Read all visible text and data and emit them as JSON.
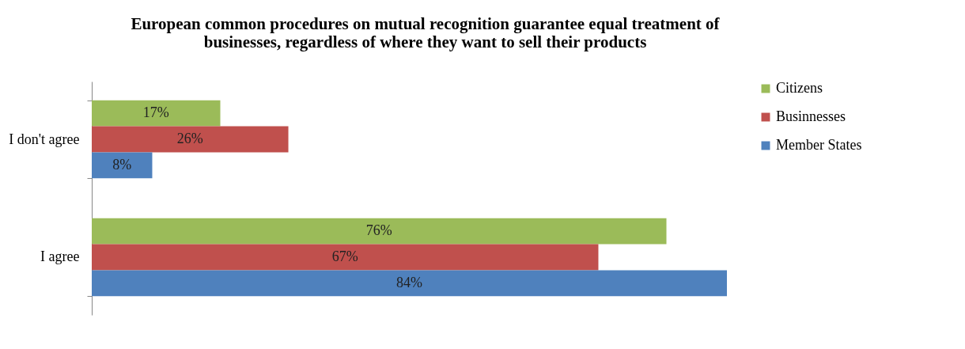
{
  "chart_data": {
    "type": "bar",
    "orientation": "horizontal",
    "title": "European common procedures on mutual recognition guarantee equal treatment of businesses, regardless  of where they want to sell their products",
    "categories": [
      "I don't agree",
      "I agree"
    ],
    "series": [
      {
        "name": "Citizens",
        "color": "#9bbb59",
        "values": [
          17,
          76
        ],
        "value_labels": [
          "17%",
          "76%"
        ]
      },
      {
        "name": "Businnesses",
        "color": "#c0504d",
        "values": [
          26,
          67
        ],
        "value_labels": [
          "26%",
          "67%"
        ]
      },
      {
        "name": "Member States",
        "color": "#4f81bd",
        "values": [
          8,
          84
        ],
        "value_labels": [
          "8%",
          "84%"
        ]
      }
    ],
    "legend": "right"
  }
}
